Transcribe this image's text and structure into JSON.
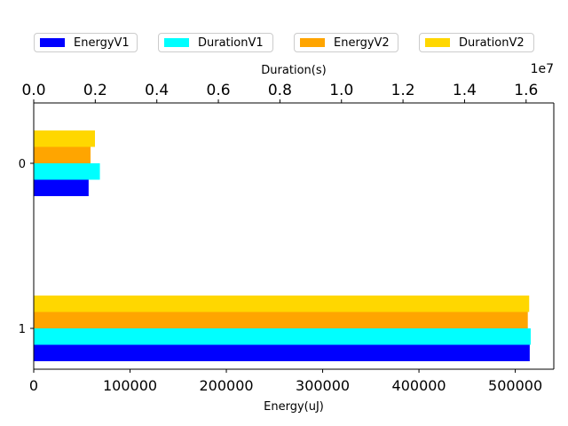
{
  "chart_data": {
    "type": "bar",
    "orientation": "horizontal",
    "categories": [
      "0",
      "1"
    ],
    "series": [
      {
        "name": "EnergyV1",
        "axis": "bottom",
        "color": "#0000ff",
        "values": [
          57000,
          515000
        ]
      },
      {
        "name": "DurationV1",
        "axis": "top",
        "color": "#00ffff",
        "values": [
          2150000,
          16150000
        ]
      },
      {
        "name": "EnergyV2",
        "axis": "bottom",
        "color": "#ffa500",
        "values": [
          59000,
          513000
        ]
      },
      {
        "name": "DurationV2",
        "axis": "top",
        "color": "#ffd700",
        "values": [
          1990000,
          16100000
        ]
      }
    ],
    "xlabel_bottom": "Energy(uJ)",
    "xlabel_top": "Duration(s)",
    "top_axis_offset": "1e7",
    "xlim_bottom": [
      0,
      540000
    ],
    "xlim_top": [
      0,
      16900000
    ],
    "bottom_ticks": [
      "0",
      "100000",
      "200000",
      "300000",
      "400000",
      "500000"
    ],
    "top_ticks": [
      "0.0",
      "0.2",
      "0.4",
      "0.6",
      "0.8",
      "1.0",
      "1.2",
      "1.4",
      "1.6"
    ],
    "grid": false,
    "legend_placement": "top"
  }
}
